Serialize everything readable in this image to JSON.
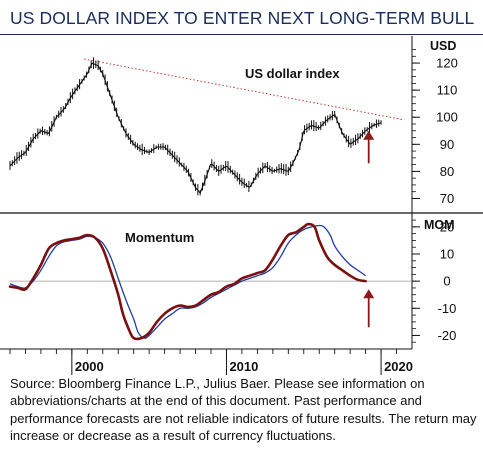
{
  "title": "US DOLLAR INDEX TO ENTER NEXT LONG-TERM BULL",
  "source": "Source: Bloomberg Finance L.P., Julius Baer. Please see information on abbreviations/charts at the end of this document. Past performance and performance forecasts are not reliable indicators of future results. The return may increase or decrease as a result of currency fluctuations.",
  "colors": {
    "title": "#1a2e5a",
    "price": "#111111",
    "trendline": "#c0392b",
    "momentum_fast": "#7a1010",
    "momentum_slow": "#1f3f9e",
    "arrow": "#8b1a1a",
    "zero_line": "#999999"
  },
  "chart_data": [
    {
      "type": "line",
      "title": "US dollar index",
      "unit_label": "USD",
      "ylim": [
        65,
        130
      ],
      "yticks": [
        70,
        80,
        90,
        100,
        110,
        120
      ],
      "x_range": [
        1996,
        2022
      ],
      "xticks": [
        2000,
        2010,
        2020
      ],
      "series": [
        {
          "name": "US dollar index",
          "x": [
            1996.0,
            1996.5,
            1997.0,
            1997.5,
            1998.0,
            1998.5,
            1999.0,
            1999.5,
            2000.0,
            2000.5,
            2001.0,
            2001.3,
            2001.7,
            2002.0,
            2002.5,
            2003.0,
            2003.5,
            2004.0,
            2004.5,
            2005.0,
            2005.5,
            2006.0,
            2006.5,
            2007.0,
            2007.5,
            2008.0,
            2008.3,
            2008.7,
            2009.0,
            2009.5,
            2010.0,
            2010.5,
            2011.0,
            2011.5,
            2012.0,
            2012.5,
            2013.0,
            2013.5,
            2014.0,
            2014.3,
            2014.7,
            2015.0,
            2015.5,
            2016.0,
            2016.5,
            2017.0,
            2017.5,
            2018.0,
            2018.5,
            2019.0,
            2019.5,
            2020.0
          ],
          "values": [
            82,
            85,
            87,
            92,
            95,
            94,
            100,
            103,
            108,
            112,
            116,
            120,
            119,
            116,
            108,
            100,
            94,
            90,
            88,
            87,
            89,
            89,
            86,
            83,
            80,
            74,
            72,
            78,
            83,
            80,
            82,
            79,
            76,
            74,
            79,
            82,
            80,
            81,
            80,
            83,
            88,
            95,
            97,
            96,
            99,
            101,
            94,
            90,
            92,
            95,
            97,
            98
          ]
        },
        {
          "name": "trendline",
          "style": "dotted",
          "x": [
            2000.8,
            2021.5
          ],
          "values": [
            121.5,
            99
          ]
        }
      ],
      "annotations": [
        {
          "type": "arrow",
          "direction": "up",
          "x": 2019.2,
          "from": 83,
          "to": 95
        }
      ]
    },
    {
      "type": "line",
      "title": "Momentum",
      "unit_label": "MOM",
      "ylim": [
        -25,
        24
      ],
      "yticks": [
        -20,
        -10,
        0,
        10,
        20
      ],
      "x_range": [
        1996,
        2022
      ],
      "xticks": [
        2000,
        2010,
        2020
      ],
      "series": [
        {
          "name": "momentum_fast",
          "x": [
            1996.0,
            1996.5,
            1997.0,
            1997.5,
            1998.0,
            1998.5,
            1999.0,
            1999.5,
            2000.0,
            2000.5,
            2001.0,
            2001.5,
            2002.0,
            2002.5,
            2003.0,
            2003.3,
            2003.7,
            2004.0,
            2004.5,
            2005.0,
            2005.5,
            2006.0,
            2006.5,
            2007.0,
            2007.5,
            2008.0,
            2008.5,
            2009.0,
            2009.5,
            2010.0,
            2010.5,
            2011.0,
            2011.5,
            2012.0,
            2012.5,
            2013.0,
            2013.5,
            2014.0,
            2014.5,
            2015.0,
            2015.3,
            2015.7,
            2016.0,
            2016.5,
            2017.0,
            2017.5,
            2018.0,
            2018.5,
            2019.0
          ],
          "values": [
            -2,
            -2.5,
            -3,
            1,
            6,
            12,
            14,
            15,
            15.5,
            16,
            17,
            16,
            12,
            4,
            -5,
            -12,
            -18,
            -21,
            -21,
            -19,
            -15,
            -12,
            -10,
            -9,
            -9.5,
            -9,
            -7,
            -5,
            -4,
            -2,
            -1,
            1,
            2,
            3,
            4,
            8,
            13,
            17,
            18,
            20,
            21,
            20,
            15,
            9,
            6,
            4,
            2,
            0.5,
            0
          ]
        },
        {
          "name": "momentum_slow",
          "x": [
            1996.0,
            1996.5,
            1997.0,
            1997.5,
            1998.0,
            1998.5,
            1999.0,
            1999.5,
            2000.0,
            2000.5,
            2001.0,
            2001.5,
            2002.0,
            2002.5,
            2003.0,
            2003.5,
            2004.0,
            2004.3,
            2004.7,
            2005.0,
            2005.5,
            2006.0,
            2006.5,
            2007.0,
            2007.5,
            2008.0,
            2008.5,
            2009.0,
            2009.5,
            2010.0,
            2010.5,
            2011.0,
            2011.5,
            2012.0,
            2012.5,
            2013.0,
            2013.5,
            2014.0,
            2014.5,
            2015.0,
            2015.5,
            2016.0,
            2016.3,
            2016.7,
            2017.0,
            2017.5,
            2018.0,
            2018.5,
            2019.0
          ],
          "values": [
            -1,
            -2,
            -2.5,
            0,
            4,
            9,
            13,
            14.5,
            15,
            15.5,
            16.5,
            16,
            14,
            9,
            1,
            -7,
            -14,
            -19,
            -21,
            -20,
            -17,
            -14,
            -12,
            -10,
            -10,
            -9.5,
            -8,
            -6,
            -4.5,
            -3,
            -1.5,
            0,
            1,
            2,
            3,
            5,
            9,
            14,
            17,
            19,
            20,
            20.5,
            20,
            17,
            13,
            9,
            6,
            4,
            2
          ]
        },
        {
          "name": "zero",
          "style": "thin",
          "x": [
            1996,
            2022
          ],
          "values": [
            0,
            0
          ]
        }
      ],
      "annotations": [
        {
          "type": "arrow",
          "direction": "up",
          "x": 2019.2,
          "from": -17,
          "to": -3
        }
      ]
    }
  ]
}
